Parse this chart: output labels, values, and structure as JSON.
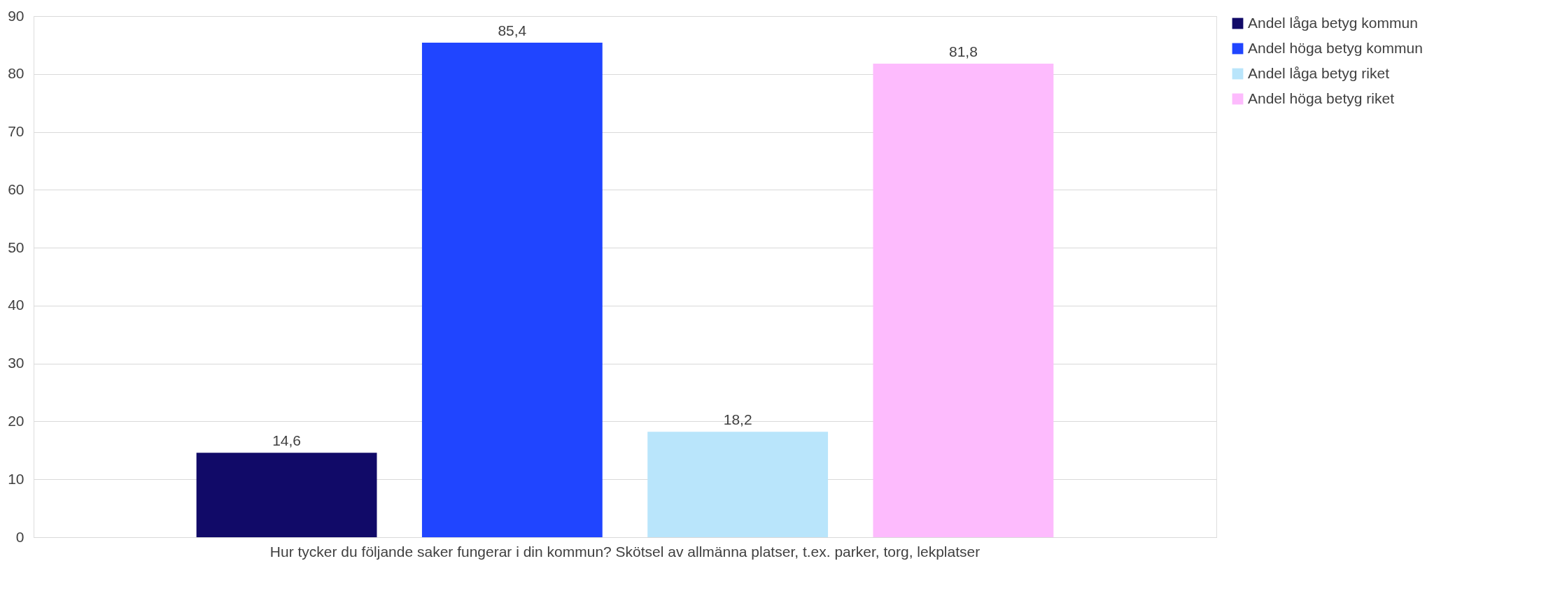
{
  "chart_data": {
    "type": "bar",
    "categories": [
      "Hur tycker du följande saker fungerar i din kommun? Skötsel av allmänna platser, t.ex. parker, torg, lekplatser"
    ],
    "series": [
      {
        "name": "Andel låga betyg kommun",
        "color": "#110a68",
        "values": [
          14.6
        ],
        "value_labels": [
          "14,6"
        ]
      },
      {
        "name": "Andel höga betyg kommun",
        "color": "#2045ff",
        "values": [
          85.4
        ],
        "value_labels": [
          "85,4"
        ]
      },
      {
        "name": "Andel låga betyg riket",
        "color": "#b9e5fb",
        "values": [
          18.2
        ],
        "value_labels": [
          "18,2"
        ]
      },
      {
        "name": "Andel höga betyg riket",
        "color": "#fdbbfd",
        "values": [
          81.8
        ],
        "value_labels": [
          "81,8"
        ]
      }
    ],
    "ylim": [
      0,
      90
    ],
    "yticks": [
      0,
      10,
      20,
      30,
      40,
      50,
      60,
      70,
      80,
      90
    ],
    "grid": "y",
    "legend": "right"
  }
}
